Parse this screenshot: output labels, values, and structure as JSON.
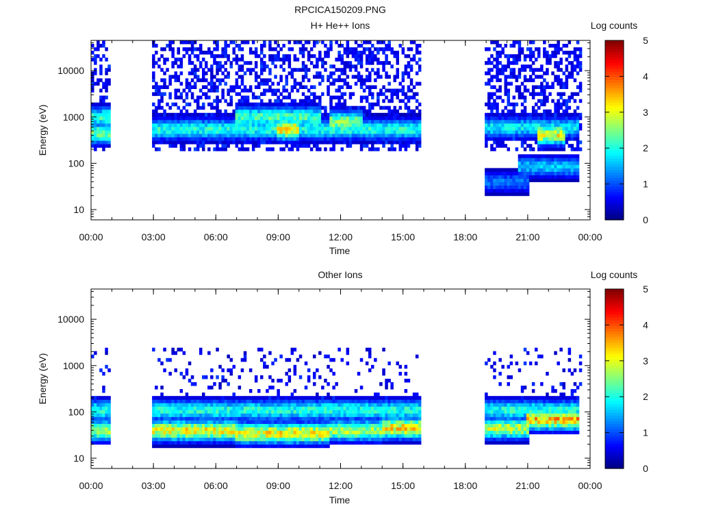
{
  "figure": {
    "title": "RPCICA150209.PNG"
  },
  "chart_data": [
    {
      "type": "heatmap",
      "title": "H+ He++ Ions",
      "xlabel": "Time",
      "ylabel": "Energy (eV)",
      "x_ticks": [
        "00:00",
        "03:00",
        "06:00",
        "09:00",
        "12:00",
        "15:00",
        "18:00",
        "21:00",
        "00:00"
      ],
      "x_range_hours": [
        0,
        24
      ],
      "y_scale": "log",
      "y_range": [
        6,
        45000
      ],
      "y_ticks": [
        10,
        100,
        1000,
        10000
      ],
      "y_tick_labels": [
        "10",
        "100",
        "1000",
        "10000"
      ],
      "colorbar": {
        "label": "Log counts",
        "range": [
          0,
          5
        ],
        "ticks": [
          "0",
          "1",
          "2",
          "3",
          "4",
          "5"
        ],
        "colormap": "jet"
      },
      "data_gaps_hours": [
        [
          1.0,
          3.0
        ],
        [
          15.9,
          19.0
        ],
        [
          23.6,
          24.0
        ]
      ],
      "bands": [
        {
          "t": [
            0.0,
            1.0
          ],
          "energy_eV": 450,
          "log_counts": 2.4
        },
        {
          "t": [
            0.0,
            1.0
          ],
          "energy_eV": 1000,
          "log_counts": 2.1
        },
        {
          "t": [
            3.0,
            15.9
          ],
          "energy_eV": 550,
          "log_counts": 2.0
        },
        {
          "t": [
            7.0,
            11.0
          ],
          "energy_eV": 1000,
          "log_counts": 2.2
        },
        {
          "t": [
            9.0,
            10.0
          ],
          "energy_eV": 550,
          "log_counts": 3.2
        },
        {
          "t": [
            11.5,
            13.0
          ],
          "energy_eV": 800,
          "log_counts": 2.6
        },
        {
          "t": [
            19.0,
            23.5
          ],
          "energy_eV": 600,
          "log_counts": 1.8
        },
        {
          "t": [
            21.5,
            22.8
          ],
          "energy_eV": 420,
          "log_counts": 3.0
        },
        {
          "t": [
            20.5,
            23.5
          ],
          "energy_eV": 85,
          "log_counts": 1.6
        },
        {
          "t": [
            19.0,
            21.0
          ],
          "energy_eV": 40,
          "log_counts": 1.2
        }
      ]
    },
    {
      "type": "heatmap",
      "title": "Other Ions",
      "xlabel": "Time",
      "ylabel": "Energy (eV)",
      "x_ticks": [
        "00:00",
        "03:00",
        "06:00",
        "09:00",
        "12:00",
        "15:00",
        "18:00",
        "21:00",
        "00:00"
      ],
      "x_range_hours": [
        0,
        24
      ],
      "y_scale": "log",
      "y_range": [
        6,
        45000
      ],
      "y_ticks": [
        10,
        100,
        1000,
        10000
      ],
      "y_tick_labels": [
        "10",
        "100",
        "1000",
        "10000"
      ],
      "colorbar": {
        "label": "Log counts",
        "range": [
          0,
          5
        ],
        "ticks": [
          "0",
          "1",
          "2",
          "3",
          "4",
          "5"
        ],
        "colormap": "jet"
      },
      "data_gaps_hours": [
        [
          1.0,
          3.0
        ],
        [
          15.9,
          19.0
        ],
        [
          23.6,
          24.0
        ]
      ],
      "bands": [
        {
          "t": [
            0.0,
            1.0
          ],
          "energy_eV": 40,
          "log_counts": 2.6
        },
        {
          "t": [
            3.0,
            7.0
          ],
          "energy_eV": 40,
          "log_counts": 3.0
        },
        {
          "t": [
            7.0,
            11.5
          ],
          "energy_eV": 35,
          "log_counts": 3.1
        },
        {
          "t": [
            11.5,
            14.0
          ],
          "energy_eV": 40,
          "log_counts": 2.7
        },
        {
          "t": [
            14.0,
            15.9
          ],
          "energy_eV": 45,
          "log_counts": 3.2
        },
        {
          "t": [
            19.0,
            21.0
          ],
          "energy_eV": 45,
          "log_counts": 2.8
        },
        {
          "t": [
            21.0,
            23.5
          ],
          "energy_eV": 70,
          "log_counts": 3.4
        },
        {
          "t": [
            0.0,
            23.5
          ],
          "energy_eV": 110,
          "log_counts": 2.0
        }
      ]
    }
  ]
}
